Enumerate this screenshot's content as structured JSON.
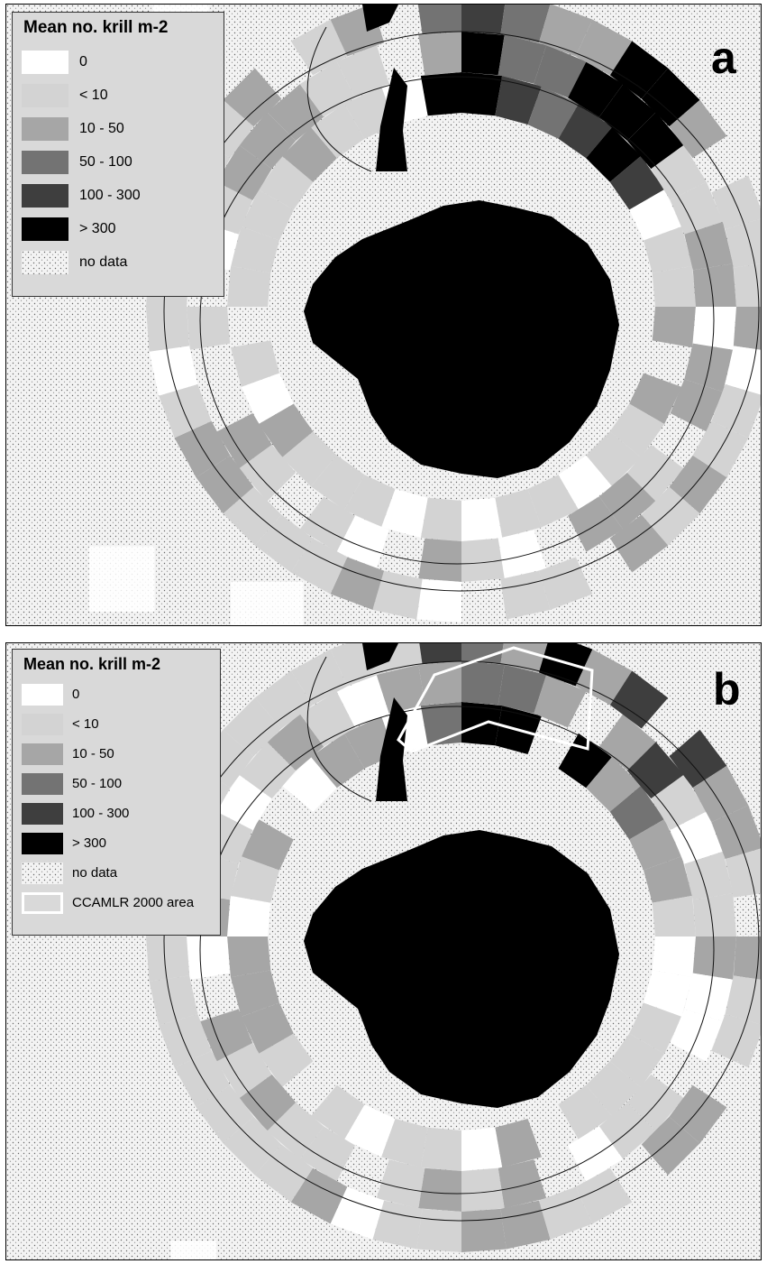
{
  "figure": {
    "panels": [
      {
        "letter": "a",
        "legend_title": "Mean no. krill m-2",
        "legend": [
          {
            "label": "0",
            "color": "#ffffff"
          },
          {
            "label": "< 10",
            "color": "#d3d3d3"
          },
          {
            "label": "10 - 50",
            "color": "#a6a6a6"
          },
          {
            "label": "50 - 100",
            "color": "#737373"
          },
          {
            "label": "100 - 300",
            "color": "#3e3e3e"
          },
          {
            "label": "> 300",
            "color": "#000000"
          },
          {
            "label": "no data",
            "color": "stipple"
          }
        ]
      },
      {
        "letter": "b",
        "legend_title": "Mean no. krill m-2",
        "legend": [
          {
            "label": "0",
            "color": "#ffffff"
          },
          {
            "label": "< 10",
            "color": "#d3d3d3"
          },
          {
            "label": "10 - 50",
            "color": "#a6a6a6"
          },
          {
            "label": "50 - 100",
            "color": "#737373"
          },
          {
            "label": "100 - 300",
            "color": "#3e3e3e"
          },
          {
            "label": "> 300",
            "color": "#000000"
          },
          {
            "label": "no data",
            "color": "stipple"
          },
          {
            "label": "CCAMLR 2000 area",
            "color": "white-outline"
          }
        ]
      }
    ]
  }
}
